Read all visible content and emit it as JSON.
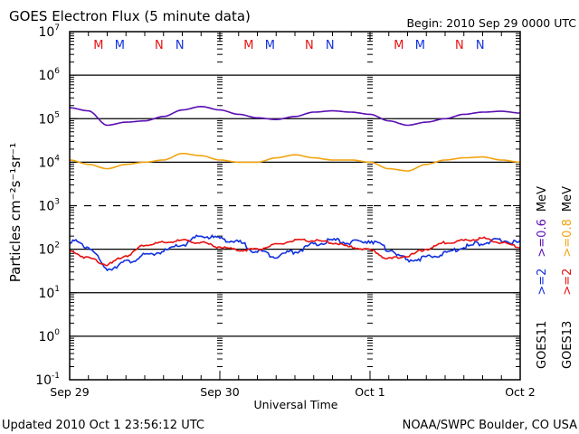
{
  "chart_data": {
    "type": "line",
    "title": "GOES Electron Flux (5 minute data)",
    "subtitle": "Begin: 2010 Sep 29 0000 UTC",
    "xlabel": "Universal Time",
    "ylabel": "Particles cm⁻²s⁻¹sr⁻¹",
    "yscale": "log",
    "ylim": [
      0.1,
      10000000
    ],
    "xlim_hours": [
      0,
      72
    ],
    "x_tick_labels": [
      {
        "hour": 0,
        "label": "Sep 29"
      },
      {
        "hour": 24,
        "label": "Sep 30"
      },
      {
        "hour": 48,
        "label": "Oct 1"
      },
      {
        "hour": 72,
        "label": "Oct 2"
      }
    ],
    "y_tick_labels": [
      {
        "exp": 7,
        "base": "10",
        "sup": "7"
      },
      {
        "exp": 6,
        "base": "10",
        "sup": "6"
      },
      {
        "exp": 5,
        "base": "10",
        "sup": "5"
      },
      {
        "exp": 4,
        "base": "10",
        "sup": "4"
      },
      {
        "exp": 3,
        "base": "10",
        "sup": "3"
      },
      {
        "exp": 2,
        "base": "10",
        "sup": "2"
      },
      {
        "exp": 1,
        "base": "10",
        "sup": "1"
      },
      {
        "exp": 0,
        "base": "10",
        "sup": "0"
      },
      {
        "exp": -1,
        "base": "10",
        "sup": "-1"
      }
    ],
    "reference_lines": [
      {
        "exp": 6,
        "style": "solid"
      },
      {
        "exp": 5,
        "style": "solid"
      },
      {
        "exp": 4,
        "style": "solid"
      },
      {
        "exp": 3,
        "style": "dashed"
      },
      {
        "exp": 2,
        "style": "solid"
      },
      {
        "exp": 1,
        "style": "solid"
      },
      {
        "exp": 0,
        "style": "solid"
      }
    ],
    "x_hours": [
      0,
      3,
      6,
      9,
      12,
      15,
      18,
      21,
      24,
      27,
      30,
      33,
      36,
      39,
      42,
      45,
      48,
      51,
      54,
      57,
      60,
      63,
      66,
      69,
      72
    ],
    "series": [
      {
        "name": "GOES11 >=0.6 MeV",
        "color": "#5b0fb3",
        "log10_values": [
          5.25,
          5.18,
          4.85,
          4.92,
          4.95,
          5.05,
          5.2,
          5.28,
          5.2,
          5.1,
          5.02,
          4.98,
          5.05,
          5.15,
          5.18,
          5.15,
          5.1,
          4.95,
          4.85,
          4.92,
          5.0,
          5.1,
          5.15,
          5.17,
          5.13
        ]
      },
      {
        "name": "GOES13 >=0.8 MeV",
        "color": "#f2a30f",
        "log10_values": [
          4.05,
          3.95,
          3.85,
          3.95,
          4.0,
          4.05,
          4.2,
          4.15,
          4.05,
          4.0,
          4.0,
          4.1,
          4.17,
          4.1,
          4.05,
          4.05,
          4.0,
          3.85,
          3.8,
          3.95,
          4.05,
          4.1,
          4.12,
          4.05,
          4.0
        ]
      },
      {
        "name": "GOES11 >=2 MeV",
        "color": "#1030e0",
        "log10_values": [
          2.2,
          2.05,
          1.55,
          1.7,
          1.85,
          1.95,
          2.1,
          2.3,
          2.25,
          2.15,
          1.95,
          1.85,
          1.95,
          2.1,
          2.2,
          2.15,
          2.2,
          2.0,
          1.75,
          1.8,
          1.9,
          2.05,
          2.15,
          2.2,
          2.15
        ]
      },
      {
        "name": "GOES13 >=2 MeV",
        "color": "#e81010",
        "log10_values": [
          1.95,
          1.8,
          1.65,
          1.85,
          2.1,
          2.15,
          2.2,
          2.15,
          2.05,
          1.98,
          2.0,
          2.1,
          2.2,
          2.2,
          2.15,
          2.05,
          1.98,
          1.78,
          1.85,
          2.0,
          2.15,
          2.2,
          2.25,
          2.15,
          2.05
        ]
      }
    ],
    "grid": false,
    "legend": "right-vertical"
  },
  "legend": {
    "row1": {
      "sat": "GOES11",
      "ch1": ">=2",
      "ch2": ">=0.6",
      "unit": "MeV"
    },
    "row2": {
      "sat": "GOES13",
      "ch1": ">=2",
      "ch2": ">=0.8",
      "unit": "MeV"
    },
    "colors": {
      "goes11_high": "#1030e0",
      "goes11_low": "#5b0fb3",
      "goes13_high": "#e81010",
      "goes13_low": "#f2a30f"
    }
  },
  "markers": [
    {
      "label": "M",
      "color": "#e81010"
    },
    {
      "label": "M",
      "color": "#1030e0"
    },
    {
      "label": "N",
      "color": "#e81010"
    },
    {
      "label": "N",
      "color": "#1030e0"
    },
    {
      "label": "M",
      "color": "#e81010"
    },
    {
      "label": "M",
      "color": "#1030e0"
    },
    {
      "label": "N",
      "color": "#e81010"
    },
    {
      "label": "N",
      "color": "#1030e0"
    },
    {
      "label": "M",
      "color": "#e81010"
    },
    {
      "label": "M",
      "color": "#1030e0"
    },
    {
      "label": "N",
      "color": "#e81010"
    },
    {
      "label": "N",
      "color": "#1030e0"
    }
  ],
  "footer": {
    "updated": "Updated 2010 Oct  1 23:56:12 UTC",
    "source": "NOAA/SWPC Boulder, CO USA"
  }
}
